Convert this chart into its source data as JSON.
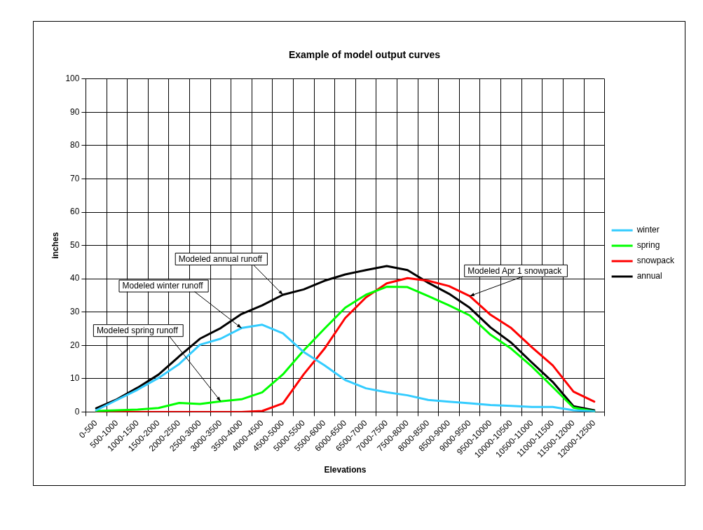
{
  "chart_data": {
    "type": "line",
    "title": "Example of model output curves",
    "xlabel": "Elevations",
    "ylabel": "inches",
    "categories": [
      "0-500",
      "500-1000",
      "1000-1500",
      "1500-2000",
      "2000-2500",
      "2500-3000",
      "3000-3500",
      "3500-4000",
      "4000-4500",
      "4500-5000",
      "5000-5500",
      "5500-6000",
      "6000-6500",
      "6500-7000",
      "7000-7500",
      "7500-8000",
      "8000-8500",
      "8500-9000",
      "9000-9500",
      "9500-10000",
      "10000-10500",
      "10500-11000",
      "11000-11500",
      "11500-12000",
      "12000-12500"
    ],
    "series": [
      {
        "name": "winter",
        "color": "#33ccff",
        "values": [
          0.5,
          3.6,
          6.7,
          10.2,
          14.4,
          20.2,
          22,
          25.2,
          26.2,
          23.6,
          18,
          14,
          9.6,
          7.1,
          5.9,
          5,
          3.6,
          3.1,
          2.6,
          2.1,
          1.8,
          1.5,
          1.5,
          0.5,
          0.2
        ]
      },
      {
        "name": "spring",
        "color": "#00ff00",
        "values": [
          0.3,
          0.5,
          0.7,
          1.2,
          2.7,
          2.4,
          3.2,
          3.8,
          5.9,
          11.3,
          18.5,
          25,
          31.3,
          35.2,
          37.6,
          37.5,
          34.8,
          32,
          29,
          23.2,
          19,
          13.6,
          7.5,
          1.3,
          0.2
        ]
      },
      {
        "name": "snowpack",
        "color": "#ff0000",
        "values": [
          0,
          0,
          0,
          0,
          0,
          0,
          0,
          0,
          0.3,
          2.6,
          11.3,
          19,
          28.2,
          34.4,
          38.6,
          40.2,
          39.4,
          37.8,
          34.8,
          29.2,
          25.2,
          19.4,
          14,
          6.1,
          3.1
        ]
      },
      {
        "name": "annual",
        "color": "#000000",
        "values": [
          1.1,
          3.8,
          7.3,
          11.2,
          16.7,
          22,
          25.2,
          29.4,
          32,
          35.2,
          36.8,
          39.4,
          41.3,
          42.6,
          43.8,
          42.6,
          38.8,
          35.5,
          31.3,
          25.4,
          20.8,
          14.8,
          9,
          1.7,
          0.5
        ]
      }
    ],
    "ylim": [
      0,
      100
    ],
    "yticks": [
      0,
      10,
      20,
      30,
      40,
      50,
      60,
      70,
      80,
      90,
      100
    ],
    "grid": true,
    "legend": "right",
    "marker": "none",
    "line_style": "solid",
    "annotations": [
      {
        "text": "Modeled annual runoff",
        "x": "4500-5000",
        "y": 35.2
      },
      {
        "text": "Modeled winter runoff",
        "x": "3500-4000",
        "y": 25.2
      },
      {
        "text": "Modeled spring runoff",
        "x": "3000-3500",
        "y": 3.2
      },
      {
        "text": "Modeled Apr 1 snowpack",
        "x": "9000-9500",
        "y": 34.8
      }
    ]
  }
}
